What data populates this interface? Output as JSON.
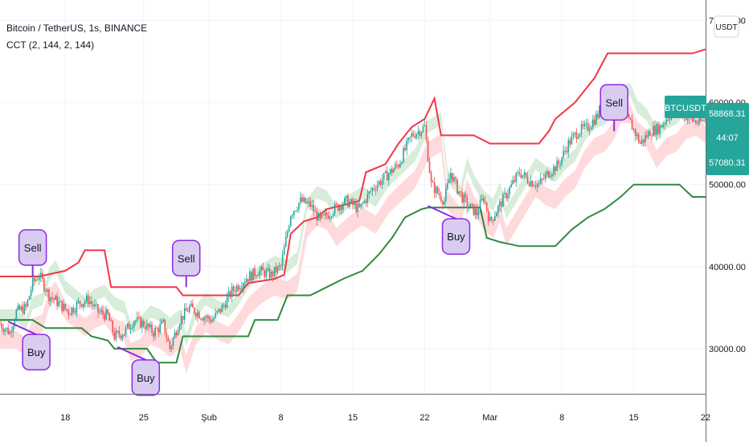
{
  "header": {
    "title": "Bitcoin / TetherUS, 1s, BINANCE",
    "indicator": "CCT (2, 144, 2, 144)"
  },
  "currency_badge": "USDT",
  "price_tags": {
    "symbol": "BTCUSDT",
    "price": "58868.31",
    "countdown": "44:07",
    "level": "57080.31",
    "color": "#26a69a"
  },
  "colors": {
    "candle_up": "#26a69a",
    "candle_down": "#ef5350",
    "upper_band": "#f23645",
    "lower_band": "#2e8b3d",
    "cloud_green": "#c8e6c9",
    "cloud_red": "#ffcdd2",
    "bubble_fill": "#d9ccf0",
    "bubble_border": "#8a2be2"
  },
  "chart_data": {
    "type": "line",
    "title": "Bitcoin / TetherUS, 1s, BINANCE",
    "y_ticks": [
      "30000.00",
      "40000.00",
      "50000.00",
      "60000.00",
      "70000.00"
    ],
    "x_ticks": [
      "18",
      "25",
      "Şub",
      "8",
      "15",
      "22",
      "Mar",
      "8",
      "15",
      "22"
    ],
    "ylim": [
      24500,
      72500
    ],
    "scale": "linear",
    "x_index_range": [
      0,
      432
    ],
    "x_tick_index": [
      40,
      88,
      128,
      172,
      216,
      260,
      300,
      344,
      388,
      432
    ],
    "series": [
      {
        "type": "candlestick",
        "points": [
          [
            0,
            33000
          ],
          [
            6,
            32000
          ],
          [
            10,
            34500
          ],
          [
            16,
            35000
          ],
          [
            20,
            38000
          ],
          [
            24,
            39000
          ],
          [
            30,
            36500
          ],
          [
            36,
            35500
          ],
          [
            42,
            34500
          ],
          [
            48,
            35500
          ],
          [
            54,
            36000
          ],
          [
            60,
            34500
          ],
          [
            66,
            34000
          ],
          [
            70,
            31500
          ],
          [
            76,
            32000
          ],
          [
            82,
            33500
          ],
          [
            88,
            33000
          ],
          [
            94,
            32000
          ],
          [
            100,
            33000
          ],
          [
            104,
            30000
          ],
          [
            110,
            33500
          ],
          [
            116,
            35000
          ],
          [
            124,
            34000
          ],
          [
            130,
            33500
          ],
          [
            136,
            35000
          ],
          [
            142,
            37000
          ],
          [
            150,
            38500
          ],
          [
            158,
            39500
          ],
          [
            166,
            39000
          ],
          [
            172,
            40000
          ],
          [
            178,
            46500
          ],
          [
            184,
            48000
          ],
          [
            190,
            47500
          ],
          [
            196,
            45500
          ],
          [
            204,
            47000
          ],
          [
            212,
            48000
          ],
          [
            220,
            47000
          ],
          [
            228,
            49500
          ],
          [
            236,
            51000
          ],
          [
            244,
            52500
          ],
          [
            252,
            56000
          ],
          [
            260,
            57000
          ],
          [
            264,
            50000
          ],
          [
            268,
            49000
          ],
          [
            272,
            48000
          ],
          [
            276,
            51500
          ],
          [
            280,
            49500
          ],
          [
            286,
            47500
          ],
          [
            292,
            46500
          ],
          [
            296,
            48500
          ],
          [
            300,
            45500
          ],
          [
            306,
            47500
          ],
          [
            312,
            49500
          ],
          [
            318,
            51500
          ],
          [
            324,
            50500
          ],
          [
            330,
            50000
          ],
          [
            336,
            51500
          ],
          [
            342,
            52500
          ],
          [
            348,
            55000
          ],
          [
            354,
            56500
          ],
          [
            360,
            57000
          ],
          [
            366,
            58500
          ],
          [
            370,
            60500
          ],
          [
            376,
            60500
          ],
          [
            380,
            58500
          ],
          [
            386,
            57500
          ],
          [
            392,
            55000
          ],
          [
            398,
            56500
          ],
          [
            404,
            57000
          ],
          [
            410,
            58500
          ],
          [
            416,
            59000
          ],
          [
            422,
            58000
          ],
          [
            428,
            57500
          ],
          [
            432,
            58000
          ]
        ]
      },
      {
        "name": "",
        "role": "upper_band",
        "points": [
          [
            0,
            38800
          ],
          [
            24,
            38800
          ],
          [
            40,
            39500
          ],
          [
            48,
            40500
          ],
          [
            52,
            42000
          ],
          [
            64,
            42000
          ],
          [
            68,
            37500
          ],
          [
            108,
            37500
          ],
          [
            112,
            36500
          ],
          [
            146,
            36500
          ],
          [
            152,
            38000
          ],
          [
            168,
            38500
          ],
          [
            174,
            39000
          ],
          [
            178,
            44000
          ],
          [
            186,
            45500
          ],
          [
            194,
            46000
          ],
          [
            200,
            47000
          ],
          [
            210,
            47500
          ],
          [
            220,
            48000
          ],
          [
            224,
            51500
          ],
          [
            236,
            52500
          ],
          [
            244,
            55000
          ],
          [
            252,
            57000
          ],
          [
            260,
            58000
          ],
          [
            266,
            60500
          ],
          [
            270,
            56000
          ],
          [
            290,
            56000
          ],
          [
            300,
            55000
          ],
          [
            330,
            55000
          ],
          [
            336,
            56500
          ],
          [
            340,
            58000
          ],
          [
            346,
            59000
          ],
          [
            352,
            60000
          ],
          [
            358,
            61500
          ],
          [
            364,
            63000
          ],
          [
            372,
            66000
          ],
          [
            424,
            66000
          ],
          [
            432,
            66500
          ]
        ]
      },
      {
        "name": "",
        "role": "lower_band",
        "points": [
          [
            0,
            33500
          ],
          [
            20,
            33500
          ],
          [
            28,
            32500
          ],
          [
            50,
            32500
          ],
          [
            56,
            31500
          ],
          [
            66,
            31000
          ],
          [
            70,
            30000
          ],
          [
            90,
            30000
          ],
          [
            96,
            28300
          ],
          [
            108,
            28300
          ],
          [
            112,
            31500
          ],
          [
            152,
            31500
          ],
          [
            156,
            33500
          ],
          [
            170,
            33500
          ],
          [
            176,
            36500
          ],
          [
            190,
            36500
          ],
          [
            200,
            37500
          ],
          [
            210,
            38500
          ],
          [
            222,
            39500
          ],
          [
            232,
            41500
          ],
          [
            240,
            43500
          ],
          [
            248,
            46000
          ],
          [
            258,
            47000
          ],
          [
            262,
            47200
          ],
          [
            294,
            47200
          ],
          [
            298,
            43500
          ],
          [
            306,
            43000
          ],
          [
            318,
            42500
          ],
          [
            340,
            42500
          ],
          [
            350,
            44500
          ],
          [
            360,
            46000
          ],
          [
            370,
            47000
          ],
          [
            380,
            48500
          ],
          [
            388,
            50000
          ],
          [
            416,
            50000
          ],
          [
            424,
            48500
          ],
          [
            432,
            48500
          ]
        ]
      }
    ],
    "annotations": [
      {
        "text": "Sell",
        "type": "sell",
        "index": 20,
        "price": 38800
      },
      {
        "text": "Buy",
        "type": "buy",
        "index": 5,
        "price": 33300
      },
      {
        "text": "Sell",
        "type": "sell",
        "index": 114,
        "price": 37500
      },
      {
        "text": "Buy",
        "type": "buy",
        "index": 72,
        "price": 30200
      },
      {
        "text": "Buy",
        "type": "buy",
        "index": 262,
        "price": 47400
      },
      {
        "text": "Sell",
        "type": "sell",
        "index": 376,
        "price": 56500
      }
    ]
  }
}
